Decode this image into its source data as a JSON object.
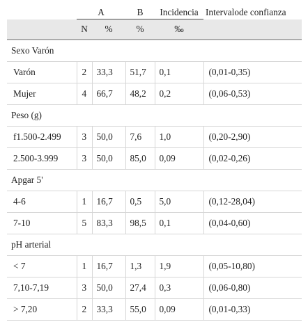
{
  "header": {
    "col_a": "A",
    "col_b": "B",
    "col_incidencia": "Incidencia",
    "col_intervalo": "Intervalode confianza",
    "sub_n": "N",
    "sub_a_pct": "%",
    "sub_b_pct": "%",
    "sub_incidencia_unit": "‰"
  },
  "groups": [
    {
      "label": "Sexo Varón",
      "rows": [
        {
          "name": "Varón",
          "n": "2",
          "a": "33,3",
          "b": "51,7",
          "inc": "0,1",
          "ci": "(0,01-0,35)"
        },
        {
          "name": "Mujer",
          "n": "4",
          "a": "66,7",
          "b": "48,2",
          "inc": "0,2",
          "ci": "(0,06-0,53)"
        }
      ]
    },
    {
      "label": "Peso (g)",
      "rows": [
        {
          "name": "f1.500-2.499",
          "n": "3",
          "a": "50,0",
          "b": "7,6",
          "inc": "1,0",
          "ci": "(0,20-2,90)"
        },
        {
          "name": "2.500-3.999",
          "n": "3",
          "a": "50,0",
          "b": "85,0",
          "inc": "0,09",
          "ci": "(0,02-0,26)"
        }
      ]
    },
    {
      "label": "Apgar 5'",
      "rows": [
        {
          "name": "4-6",
          "n": "1",
          "a": "16,7",
          "b": "0,5",
          "inc": "5,0",
          "ci": "(0,12-28,04)"
        },
        {
          "name": "7-10",
          "n": "5",
          "a": "83,3",
          "b": "98,5",
          "inc": "0,1",
          "ci": "(0,04-0,60)"
        }
      ]
    },
    {
      "label": "pH arterial",
      "rows": [
        {
          "name": "< 7",
          "n": "1",
          "a": "16,7",
          "b": "1,3",
          "inc": "1,9",
          "ci": "(0,05-10,80)"
        },
        {
          "name": "7,10-7,19",
          "n": "3",
          "a": "50,0",
          "b": "27,4",
          "inc": "0,3",
          "ci": "(0,06-0,80)"
        },
        {
          "name": "> 7,20",
          "n": "2",
          "a": "33,3",
          "b": "55,0",
          "inc": "0,09",
          "ci": "(0,01-0,33)"
        }
      ]
    }
  ]
}
